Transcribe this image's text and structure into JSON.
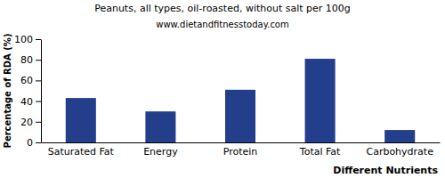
{
  "chart_data": {
    "type": "bar",
    "title": "Peanuts, all types, oil-roasted, without salt per 100g",
    "subtitle": "www.dietandfitnesstoday.com",
    "x_label": "Different Nutrients",
    "y_label": "Percentage of RDA (%)",
    "categories": [
      "Saturated Fat",
      "Energy",
      "Protein",
      "Total Fat",
      "Carbohydrate"
    ],
    "values": [
      43,
      30,
      51,
      81,
      12
    ],
    "color": "#233e8b",
    "ylim": [
      0,
      100
    ],
    "yticks": [
      0,
      20,
      40,
      60,
      80,
      100
    ],
    "grid": false
  }
}
